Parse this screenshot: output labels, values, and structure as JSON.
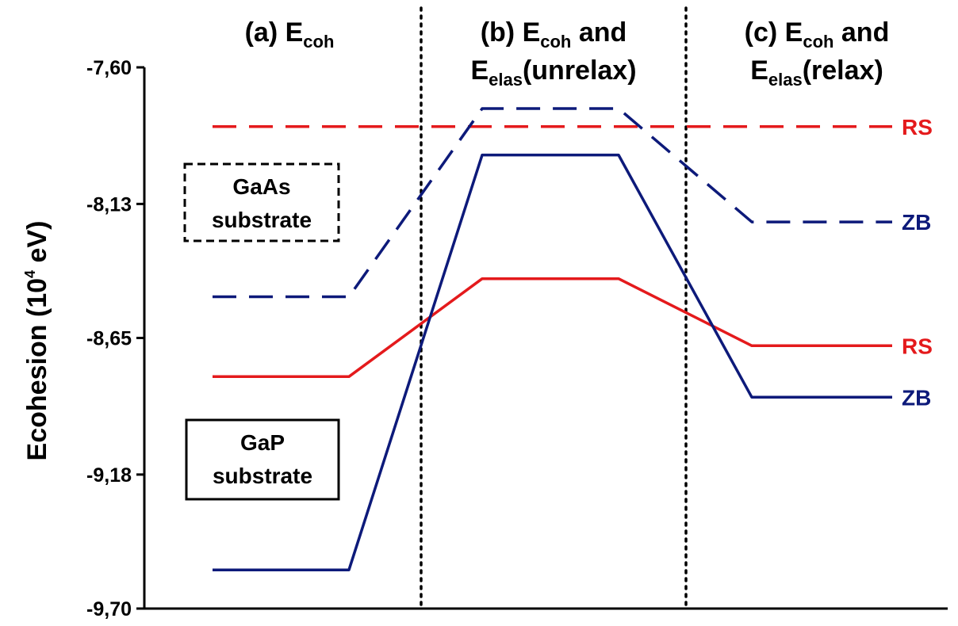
{
  "chart_data": {
    "type": "line",
    "ylabel_text": "Ecohesion (10",
    "ylabel_sup": "4",
    "ylabel_unit": " eV)",
    "ylim": [
      -9.7,
      -7.6
    ],
    "yticks": [
      "-7,60",
      "-8,13",
      "-8,65",
      "-9,18",
      "-9,70"
    ],
    "ytick_values": [
      -7.6,
      -8.13,
      -8.65,
      -9.18,
      -9.7
    ],
    "grid": false,
    "panels": [
      {
        "label": "(a) E",
        "sub": "coh",
        "line2": "",
        "line2_sub": "",
        "line2_rest": ""
      },
      {
        "label": "(b) E",
        "sub": "coh",
        "rest": " and",
        "line2": "E",
        "line2_sub": "elas",
        "line2_rest": "(unrelax)"
      },
      {
        "label": "(c) E",
        "sub": "coh",
        "rest": " and",
        "line2": "E",
        "line2_sub": "elas",
        "line2_rest": "(relax)"
      }
    ],
    "series": [
      {
        "substrate": "GaAs",
        "phase": "RS",
        "style": "dashed",
        "color": "#e41a1c",
        "values": [
          -7.83,
          -7.83,
          -7.83
        ]
      },
      {
        "substrate": "GaAs",
        "phase": "ZB",
        "style": "dashed",
        "color": "#0d1a7a",
        "values": [
          -8.49,
          -7.76,
          -8.2
        ]
      },
      {
        "substrate": "GaP",
        "phase": "RS",
        "style": "solid",
        "color": "#e41a1c",
        "values": [
          -8.8,
          -8.42,
          -8.68
        ]
      },
      {
        "substrate": "GaP",
        "phase": "ZB",
        "style": "solid",
        "color": "#0d1a7a",
        "values": [
          -9.55,
          -7.94,
          -8.88
        ]
      }
    ],
    "end_labels": [
      {
        "text": "RS",
        "color": "#e41a1c",
        "value": -7.83
      },
      {
        "text": "ZB",
        "color": "#0d1a7a",
        "value": -8.2
      },
      {
        "text": "RS",
        "color": "#e41a1c",
        "value": -8.68
      },
      {
        "text": "ZB",
        "color": "#0d1a7a",
        "value": -8.88
      }
    ],
    "legend_boxes": [
      {
        "line1": "GaAs",
        "line2": "substrate",
        "style": "dashed"
      },
      {
        "line1": "GaP",
        "line2": "substrate",
        "style": "solid"
      }
    ]
  }
}
